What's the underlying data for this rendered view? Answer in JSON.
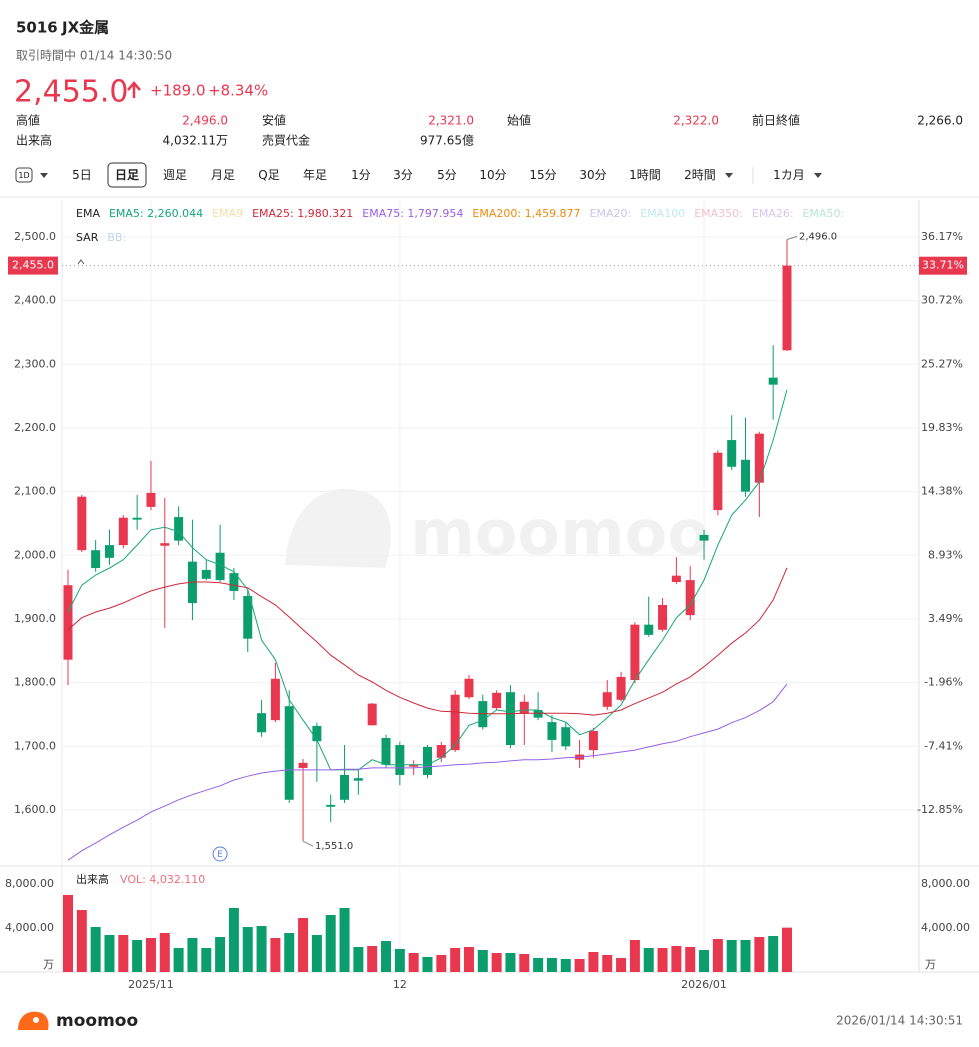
{
  "header": {
    "code": "5016",
    "name": "JX金属",
    "status": "取引時間中 01/14 14:30:50",
    "price": "2,455.0",
    "change": "+189.0",
    "change_pct": "+8.34%",
    "stats": [
      [
        {
          "label": "高値",
          "value": "2,496.0",
          "color": "#e8384f"
        },
        {
          "label": "安値",
          "value": "2,321.0",
          "color": "#e8384f"
        },
        {
          "label": "始値",
          "value": "2,322.0",
          "color": "#e8384f"
        },
        {
          "label": "前日終値",
          "value": "2,266.0",
          "color": "#222"
        }
      ],
      [
        {
          "label": "出来高",
          "value": "4,032.11万",
          "color": "#222"
        },
        {
          "label": "売買代金",
          "value": "977.65億",
          "color": "#222"
        }
      ]
    ]
  },
  "toolbar": {
    "icon": "1D",
    "items": [
      {
        "label": "5日"
      },
      {
        "label": "日足",
        "selected": true
      },
      {
        "label": "週足"
      },
      {
        "label": "月足"
      },
      {
        "label": "Q足"
      },
      {
        "label": "年足"
      },
      {
        "label": "1分"
      },
      {
        "label": "3分"
      },
      {
        "label": "5分"
      },
      {
        "label": "10分"
      },
      {
        "label": "15分"
      },
      {
        "label": "30分"
      },
      {
        "label": "1時間"
      },
      {
        "label": "2時間",
        "dropdown": true
      },
      {
        "label": "1カ月",
        "dropdown": true
      }
    ]
  },
  "chart_data": {
    "type": "candlestick",
    "watermark": "moomoo",
    "categories": [
      null,
      null,
      null,
      null,
      null,
      null,
      "2025/11",
      null,
      null,
      null,
      null,
      null,
      null,
      null,
      null,
      null,
      null,
      null,
      null,
      null,
      null,
      null,
      null,
      null,
      "12",
      null,
      null,
      null,
      null,
      null,
      null,
      null,
      null,
      null,
      null,
      null,
      null,
      null,
      null,
      null,
      null,
      null,
      null,
      null,
      null,
      null,
      "2026/01",
      null,
      null,
      null,
      null,
      null,
      null
    ],
    "open": [
      1836,
      2008,
      2008,
      2016,
      2016,
      2059,
      2076,
      2015,
      2060,
      1990,
      1977,
      2004,
      1972,
      1936,
      1752,
      1741,
      1763,
      1666,
      1732,
      1608,
      1655,
      1650,
      1733,
      1713,
      1702,
      1668,
      1699,
      1682,
      1694,
      1777,
      1771,
      1760,
      1785,
      1751,
      1757,
      1738,
      1730,
      1679,
      1694,
      1762,
      1773,
      1804,
      1891,
      1883,
      1958,
      1906,
      2032,
      2071,
      2181,
      2150,
      2114,
      2279,
      2322
    ],
    "high": [
      1977,
      2095,
      2024,
      2040,
      2063,
      2095,
      2148,
      2090,
      2077,
      2056,
      1993,
      2048,
      1980,
      1946,
      1773,
      1831,
      1788,
      1680,
      1737,
      1624,
      1702,
      1663,
      1768,
      1718,
      1707,
      1678,
      1702,
      1707,
      1788,
      1812,
      1781,
      1788,
      1796,
      1781,
      1785,
      1749,
      1738,
      1710,
      1729,
      1804,
      1817,
      1895,
      1935,
      1933,
      1997,
      1983,
      2040,
      2165,
      2220,
      2216,
      2194,
      2330,
      2496
    ],
    "low": [
      1796,
      2005,
      1974,
      1985,
      2011,
      2040,
      2071,
      1886,
      2016,
      1898,
      1961,
      1958,
      1930,
      1848,
      1715,
      1738,
      1611,
      1551,
      1644,
      1581,
      1611,
      1624,
      1733,
      1666,
      1639,
      1655,
      1650,
      1675,
      1691,
      1774,
      1726,
      1757,
      1697,
      1702,
      1741,
      1691,
      1694,
      1666,
      1682,
      1757,
      1770,
      1799,
      1872,
      1880,
      1955,
      1898,
      1993,
      2063,
      2134,
      2092,
      2060,
      2213,
      2321
    ],
    "close": [
      1953,
      2092,
      1980,
      1996,
      2059,
      2056,
      2098,
      2019,
      2023,
      1925,
      1963,
      1961,
      1944,
      1869,
      1722,
      1806,
      1616,
      1674,
      1708,
      1605,
      1616,
      1646,
      1767,
      1671,
      1655,
      1671,
      1655,
      1702,
      1781,
      1806,
      1730,
      1784,
      1702,
      1770,
      1745,
      1710,
      1700,
      1687,
      1724,
      1785,
      1809,
      1891,
      1875,
      1922,
      1968,
      1961,
      2023,
      2161,
      2139,
      2100,
      2191,
      2268,
      2455
    ],
    "colors": {
      "up": "#e8384f",
      "down": "#0b9e6c"
    },
    "lines": [
      {
        "color": "#16a874",
        "values": [
          1911,
          1953,
          1969,
          1980,
          1993,
          2016,
          2040,
          2044,
          2037,
          2012,
          1993,
          1985,
          1974,
          1946,
          1867,
          1836,
          1773,
          1741,
          1710,
          1663,
          1663,
          1663,
          1679,
          1671,
          1671,
          1671,
          1671,
          1682,
          1702,
          1733,
          1741,
          1757,
          1754,
          1757,
          1757,
          1745,
          1738,
          1718,
          1726,
          1745,
          1765,
          1804,
          1836,
          1867,
          1902,
          1922,
          1961,
          2016,
          2063,
          2087,
          2115,
          2181,
          2260.044
        ]
      },
      {
        "color": "#d0283a",
        "values": [
          1883,
          1902,
          1911,
          1917,
          1925,
          1935,
          1944,
          1950,
          1955,
          1958,
          1958,
          1957,
          1953,
          1949,
          1935,
          1922,
          1903,
          1883,
          1864,
          1843,
          1828,
          1812,
          1801,
          1788,
          1777,
          1768,
          1760,
          1755,
          1754,
          1752,
          1751,
          1751,
          1751,
          1752,
          1752,
          1752,
          1752,
          1751,
          1749,
          1752,
          1757,
          1767,
          1776,
          1785,
          1798,
          1809,
          1825,
          1843,
          1862,
          1878,
          1898,
          1930,
          1980.321
        ]
      },
      {
        "color": "#9a5ee6",
        "values": [
          1521,
          1536,
          1548,
          1561,
          1573,
          1584,
          1597,
          1606,
          1616,
          1624,
          1631,
          1638,
          1647,
          1653,
          1658,
          1661,
          1663,
          1663,
          1663,
          1663,
          1664,
          1664,
          1666,
          1666,
          1666,
          1666,
          1668,
          1669,
          1671,
          1672,
          1674,
          1675,
          1677,
          1679,
          1679,
          1680,
          1682,
          1683,
          1685,
          1688,
          1691,
          1694,
          1699,
          1704,
          1708,
          1715,
          1721,
          1727,
          1737,
          1745,
          1756,
          1770,
          1797.954
        ]
      }
    ],
    "legend_rows": [
      [
        {
          "text": "EMA",
          "color": "#222"
        },
        {
          "text": "EMA5: 2,260.044",
          "color": "#16a874"
        },
        {
          "text": "EMA9",
          "color": "#f3dfa6"
        },
        {
          "text": "EMA25: 1,980.321",
          "color": "#d0283a"
        },
        {
          "text": "EMA75: 1,797.954",
          "color": "#9a5ee6"
        },
        {
          "text": "EMA200: 1,459.877",
          "color": "#ef8a10"
        },
        {
          "text": "EMA20:",
          "color": "#c8c4ee"
        },
        {
          "text": "EMA100",
          "color": "#bfe8f3"
        },
        {
          "text": "EMA350:",
          "color": "#f2c2cb"
        },
        {
          "text": "EMA26:",
          "color": "#d7c6ef"
        },
        {
          "text": "EMA50:",
          "color": "#b9e6cf"
        }
      ],
      [
        {
          "text": "SAR",
          "color": "#222"
        },
        {
          "text": "BB:",
          "color": "#bcd6ee"
        }
      ]
    ],
    "ylim": [
      1512,
      2558
    ],
    "yticks": [
      {
        "value": 1600,
        "label": "1,600.0"
      },
      {
        "value": 1700,
        "label": "1,700.0"
      },
      {
        "value": 1800,
        "label": "1,800.0"
      },
      {
        "value": 1900,
        "label": "1,900.0"
      },
      {
        "value": 2000,
        "label": "2,000.0"
      },
      {
        "value": 2100,
        "label": "2,100.0"
      },
      {
        "value": 2200,
        "label": "2,200.0"
      },
      {
        "value": 2300,
        "label": "2,300.0"
      },
      {
        "value": 2400,
        "label": "2,400.0"
      },
      {
        "value": 2500,
        "label": "2,500.0"
      }
    ],
    "y2lim": [
      -17.64,
      39.33
    ],
    "y2ticks": [
      {
        "value": -12.85,
        "label": "-12.85%"
      },
      {
        "value": -7.41,
        "label": "-7.41%"
      },
      {
        "value": -1.96,
        "label": "-1.96%"
      },
      {
        "value": 3.49,
        "label": "3.49%"
      },
      {
        "value": 8.93,
        "label": "8.93%"
      },
      {
        "value": 14.38,
        "label": "14.38%"
      },
      {
        "value": 19.83,
        "label": "19.83%"
      },
      {
        "value": 25.27,
        "label": "25.27%"
      },
      {
        "value": 30.72,
        "label": "30.72%"
      },
      {
        "value": 36.17,
        "label": "36.17%"
      }
    ],
    "grid": true,
    "price_tag": {
      "value": 2455,
      "label": "2,455.0",
      "y2_value": 33.71,
      "y2_label": "33.71%"
    },
    "annotations": [
      {
        "index": 52,
        "value": 2496,
        "label": "2,496.0"
      },
      {
        "index": 17,
        "value": 1551,
        "label": "1,551.0"
      }
    ],
    "events": [
      {
        "index": 11,
        "label": "E"
      }
    ],
    "volume": {
      "title": "出来高",
      "legend": "VOL: 4,032.110",
      "unit": "万",
      "values": [
        7000,
        5636,
        4090,
        3363,
        3363,
        2909,
        3090,
        3545,
        2182,
        3090,
        2182,
        3182,
        5818,
        4090,
        4182,
        3090,
        3545,
        4909,
        3363,
        5182,
        5818,
        2273,
        2364,
        2818,
        2091,
        1727,
        1364,
        1545,
        2182,
        2273,
        2000,
        1727,
        1727,
        1636,
        1273,
        1273,
        1182,
        1182,
        1818,
        1545,
        1273,
        2909,
        2182,
        2182,
        2364,
        2273,
        2000,
        3000,
        2909,
        2909,
        3182,
        3272,
        4032.11
      ],
      "ylim": [
        0,
        9090
      ],
      "yticks": [
        {
          "value": 4000,
          "label": "4,000.00"
        },
        {
          "value": 8000,
          "label": "8,000.00"
        }
      ]
    }
  },
  "footer": {
    "brand": "moomoo",
    "timestamp": "2026/01/14 14:30:51"
  }
}
